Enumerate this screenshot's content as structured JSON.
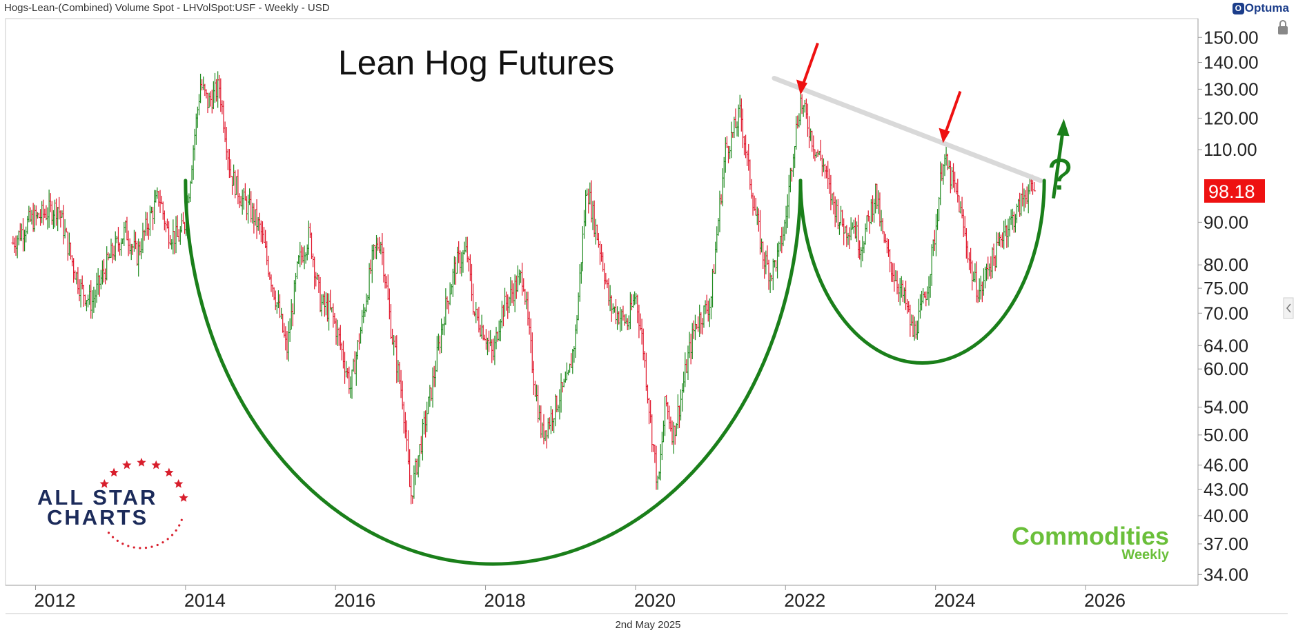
{
  "header": {
    "instrument": "Hogs-Lean-(Combined) Volume Spot - LHVolSpot:USF - Weekly - USD"
  },
  "vendor": {
    "logo_text": "Optuma"
  },
  "footer": {
    "date": "2nd May 2025"
  },
  "branding": {
    "left_line1": "ALL STAR",
    "left_line2": "CHARTS",
    "right_line1": "Commodities",
    "right_line2": "Weekly"
  },
  "annotations": {
    "question_mark": "?"
  },
  "colors": {
    "up_bar": "#1f8a1f",
    "down_bar": "#e0162b",
    "arc": "#1a7f1a",
    "resistance": "#d9d9d9",
    "arrow_red": "#ee1111",
    "arrow_green": "#1a7f1a",
    "price_tag": "#ee1111",
    "brand_navy": "#1c2b5a",
    "brand_red": "#d81e2c",
    "brand_green": "#6abf3a"
  },
  "chart_data": {
    "type": "line",
    "title": "Lean Hog Futures",
    "y_scale": "log",
    "ylim": [
      33,
      158
    ],
    "y_ticks": [
      "150.00",
      "140.00",
      "130.00",
      "120.00",
      "110.00",
      "90.00",
      "80.00",
      "75.00",
      "70.00",
      "64.00",
      "60.00",
      "54.00",
      "50.00",
      "46.00",
      "43.00",
      "40.00",
      "37.00",
      "34.00"
    ],
    "x_ticks": [
      "2012",
      "2014",
      "2016",
      "2018",
      "2020",
      "2022",
      "2024",
      "2026"
    ],
    "xlim": [
      2011.6,
      2027.5
    ],
    "last_price": "98.18",
    "series": [
      {
        "name": "LHVolSpot:USF",
        "points": [
          [
            2011.7,
            85
          ],
          [
            2011.9,
            90
          ],
          [
            2012.1,
            92
          ],
          [
            2012.3,
            94
          ],
          [
            2012.5,
            80
          ],
          [
            2012.6,
            75
          ],
          [
            2012.75,
            72
          ],
          [
            2012.9,
            78
          ],
          [
            2013.0,
            82
          ],
          [
            2013.2,
            88
          ],
          [
            2013.35,
            82
          ],
          [
            2013.5,
            90
          ],
          [
            2013.65,
            97
          ],
          [
            2013.75,
            88
          ],
          [
            2013.9,
            86
          ],
          [
            2014.0,
            90
          ],
          [
            2014.1,
            110
          ],
          [
            2014.2,
            132
          ],
          [
            2014.3,
            125
          ],
          [
            2014.45,
            131
          ],
          [
            2014.55,
            112
          ],
          [
            2014.6,
            103
          ],
          [
            2014.75,
            96
          ],
          [
            2014.9,
            92
          ],
          [
            2015.0,
            88
          ],
          [
            2015.1,
            80
          ],
          [
            2015.25,
            70
          ],
          [
            2015.35,
            63
          ],
          [
            2015.5,
            80
          ],
          [
            2015.65,
            87
          ],
          [
            2015.8,
            72
          ],
          [
            2015.95,
            70
          ],
          [
            2016.05,
            65
          ],
          [
            2016.2,
            57
          ],
          [
            2016.35,
            68
          ],
          [
            2016.5,
            82
          ],
          [
            2016.6,
            86
          ],
          [
            2016.65,
            79
          ],
          [
            2016.75,
            66
          ],
          [
            2016.9,
            55
          ],
          [
            2017.0,
            42
          ],
          [
            2017.1,
            47
          ],
          [
            2017.3,
            58
          ],
          [
            2017.45,
            70
          ],
          [
            2017.6,
            80
          ],
          [
            2017.75,
            83
          ],
          [
            2017.85,
            70
          ],
          [
            2018.0,
            66
          ],
          [
            2018.1,
            62
          ],
          [
            2018.2,
            70
          ],
          [
            2018.35,
            74
          ],
          [
            2018.5,
            78
          ],
          [
            2018.55,
            70
          ],
          [
            2018.65,
            58
          ],
          [
            2018.75,
            50
          ],
          [
            2018.85,
            52
          ],
          [
            2019.0,
            56
          ],
          [
            2019.1,
            58
          ],
          [
            2019.2,
            66
          ],
          [
            2019.35,
            100
          ],
          [
            2019.45,
            90
          ],
          [
            2019.55,
            82
          ],
          [
            2019.65,
            72
          ],
          [
            2019.75,
            70
          ],
          [
            2019.9,
            68
          ],
          [
            2020.0,
            74
          ],
          [
            2020.1,
            64
          ],
          [
            2020.2,
            52
          ],
          [
            2020.3,
            43
          ],
          [
            2020.4,
            55
          ],
          [
            2020.5,
            50
          ],
          [
            2020.6,
            55
          ],
          [
            2020.7,
            62
          ],
          [
            2020.8,
            68
          ],
          [
            2020.9,
            70
          ],
          [
            2021.0,
            72
          ],
          [
            2021.1,
            90
          ],
          [
            2021.2,
            110
          ],
          [
            2021.3,
            115
          ],
          [
            2021.4,
            122
          ],
          [
            2021.5,
            105
          ],
          [
            2021.6,
            92
          ],
          [
            2021.7,
            82
          ],
          [
            2021.8,
            78
          ],
          [
            2021.9,
            82
          ],
          [
            2022.0,
            90
          ],
          [
            2022.1,
            110
          ],
          [
            2022.2,
            126
          ],
          [
            2022.3,
            118
          ],
          [
            2022.4,
            110
          ],
          [
            2022.5,
            106
          ],
          [
            2022.6,
            97
          ],
          [
            2022.7,
            92
          ],
          [
            2022.8,
            88
          ],
          [
            2022.9,
            90
          ],
          [
            2023.0,
            84
          ],
          [
            2023.1,
            90
          ],
          [
            2023.2,
            98
          ],
          [
            2023.3,
            86
          ],
          [
            2023.4,
            80
          ],
          [
            2023.5,
            76
          ],
          [
            2023.6,
            72
          ],
          [
            2023.7,
            66
          ],
          [
            2023.8,
            70
          ],
          [
            2023.9,
            76
          ],
          [
            2024.0,
            88
          ],
          [
            2024.1,
            108
          ],
          [
            2024.2,
            102
          ],
          [
            2024.3,
            96
          ],
          [
            2024.4,
            86
          ],
          [
            2024.5,
            77
          ],
          [
            2024.6,
            74
          ],
          [
            2024.7,
            80
          ],
          [
            2024.8,
            82
          ],
          [
            2024.9,
            88
          ],
          [
            2025.0,
            90
          ],
          [
            2025.1,
            93
          ],
          [
            2025.2,
            98
          ],
          [
            2025.33,
            98.18
          ]
        ]
      }
    ],
    "overlays": {
      "cup_arcs": [
        {
          "start": [
            2014.0,
            101
          ],
          "bottom": [
            2018.0,
            35
          ],
          "end": [
            2022.2,
            101
          ]
        },
        {
          "start": [
            2022.2,
            101
          ],
          "bottom": [
            2023.9,
            61
          ],
          "end": [
            2025.45,
            101
          ]
        }
      ],
      "resistance_line": {
        "from": [
          2021.85,
          134
        ],
        "to": [
          2025.4,
          101
        ]
      },
      "red_arrow_targets": [
        [
          2022.2,
          128
        ],
        [
          2024.1,
          112
        ]
      ]
    }
  }
}
